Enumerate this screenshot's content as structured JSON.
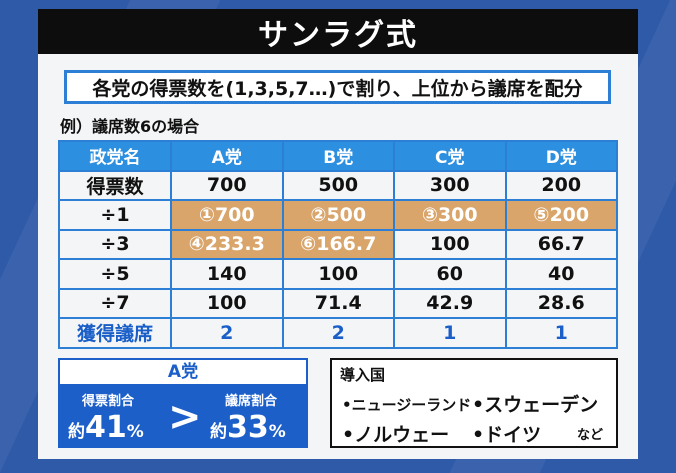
{
  "title": "サンラグ式",
  "subtitle": "各党の得票数を(1,3,5,7…)で割り、上位から議席を配分",
  "example_label": "例）議席数6の場合",
  "table": {
    "corner": "政党名",
    "parties": [
      "A党",
      "B党",
      "C党",
      "D党"
    ],
    "rows": [
      {
        "label": "得票数",
        "cells": [
          "700",
          "500",
          "300",
          "200"
        ]
      },
      {
        "label": "÷1",
        "cells": [
          "①700",
          "②500",
          "③300",
          "⑤200"
        ]
      },
      {
        "label": "÷3",
        "cells": [
          "④233.3",
          "⑥166.7",
          "100",
          "66.7"
        ]
      },
      {
        "label": "÷5",
        "cells": [
          "140",
          "100",
          "60",
          "40"
        ]
      },
      {
        "label": "÷7",
        "cells": [
          "100",
          "71.4",
          "42.9",
          "28.6"
        ]
      }
    ],
    "seats_label": "獲得議席",
    "seats": [
      "2",
      "2",
      "1",
      "1"
    ],
    "highlight_color": "#d9a56b",
    "header_color": "#2d8fe0"
  },
  "ratio": {
    "title": "A党",
    "vote_label": "得票割合",
    "vote_prefix": "約",
    "vote_value": "41",
    "vote_unit": "%",
    "comparison": ">",
    "seat_label": "議席割合",
    "seat_prefix": "約",
    "seat_value": "33",
    "seat_unit": "%"
  },
  "intro": {
    "title": "導入国",
    "countries": [
      "•ニュージーランド",
      "•スウェーデン",
      "•ノルウェー",
      "•ドイツ"
    ],
    "etc": "など"
  }
}
